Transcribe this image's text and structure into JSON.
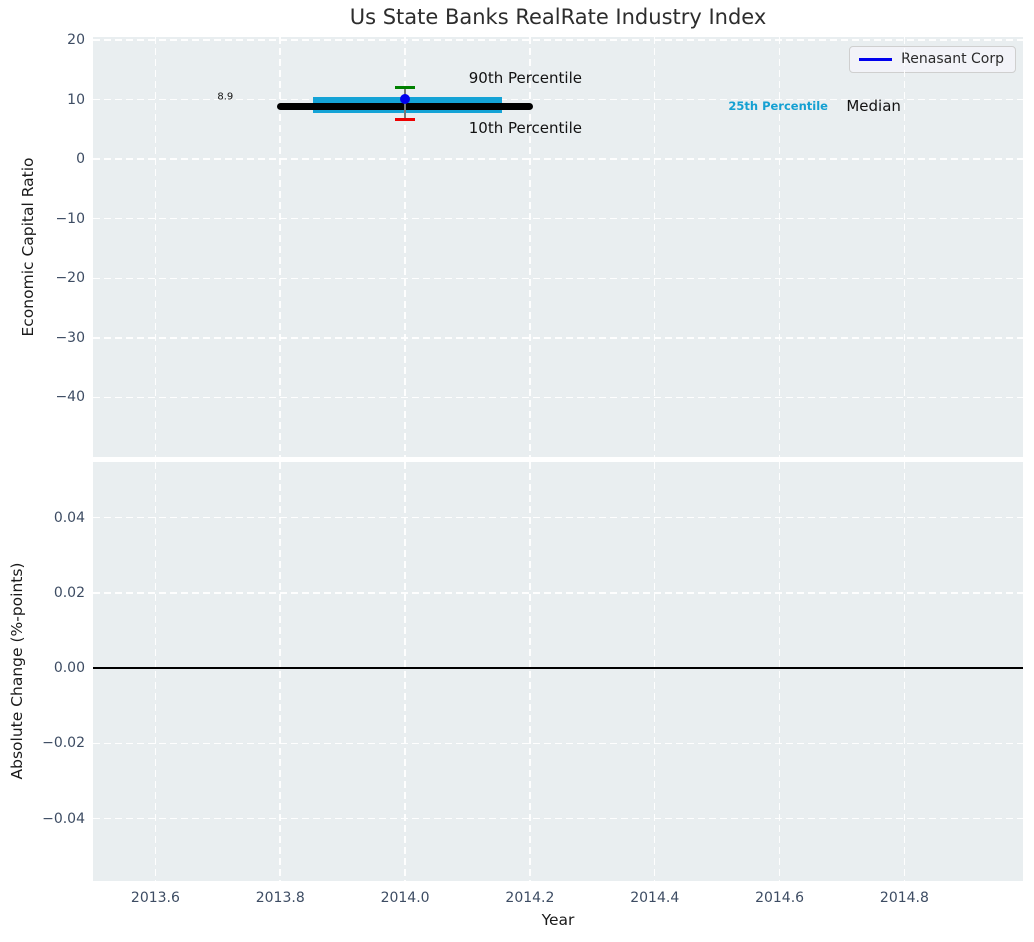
{
  "figure": {
    "title": "Us State Banks RealRate Industry Index",
    "xlabel": "Year",
    "background": "#ffffff",
    "axes_background": "#e9eef0",
    "grid_color": "#ffffff"
  },
  "legend": {
    "label": "Renasant Corp",
    "line_color": "#0000ee",
    "position": "upper right"
  },
  "chart_data": [
    {
      "id": "economic-capital-ratio-panel",
      "type": "line",
      "ylabel": "Economic Capital Ratio",
      "xlim": [
        2013.5,
        2014.99
      ],
      "ylim": [
        -50,
        20.5
      ],
      "xticks": [
        2013.6,
        2013.8,
        2014.0,
        2014.2,
        2014.4,
        2014.6,
        2014.8
      ],
      "xtick_labels": [
        "2013.6",
        "2013.8",
        "2014.0",
        "2014.2",
        "2014.4",
        "2014.6",
        "2014.8"
      ],
      "yticks": [
        20,
        10,
        0,
        -10,
        -20,
        -30,
        -40
      ],
      "ytick_labels": [
        "20",
        "10",
        "0",
        "−10",
        "−20",
        "−30",
        "−40"
      ],
      "show_xtick_labels": false,
      "grid": true,
      "series": [
        {
          "name": "25th-75th percentile band",
          "kind": "band",
          "color": "#14a3d6",
          "x_start": 2013.853,
          "x_end": 2014.155,
          "value_top": 10.45,
          "value_bottom": 7.75
        },
        {
          "name": "Median",
          "kind": "thick_hline",
          "color": "#000000",
          "x_start": 2013.795,
          "x_end": 2014.205,
          "value": 8.9
        },
        {
          "name": "Renasant Corp",
          "kind": "point_errorbar",
          "color": "#0000ee",
          "x": 2014.0,
          "value": 10.1,
          "whisker_high": 12.1,
          "whisker_high_color": "#008000",
          "whisker_low": 6.7,
          "whisker_low_color": "#ee0000",
          "line_color": "#777777"
        }
      ],
      "annotations": [
        {
          "text": "8.9",
          "x": 2013.712,
          "y": 10.4,
          "align": "center",
          "style": "small"
        },
        {
          "text": "90th Percentile",
          "x": 2014.102,
          "y": 13.6,
          "align": "left",
          "style": "large"
        },
        {
          "text": "10th Percentile",
          "x": 2014.102,
          "y": 5.2,
          "align": "left",
          "style": "large"
        },
        {
          "text": "25th Percentile",
          "x": 2014.518,
          "y": 8.9,
          "align": "left",
          "style": "cyan"
        },
        {
          "text": "Median",
          "x": 2014.707,
          "y": 8.9,
          "align": "left",
          "style": "large"
        }
      ]
    },
    {
      "id": "absolute-change-panel",
      "type": "line",
      "ylabel": "Absolute Change (%-points)",
      "xlim": [
        2013.5,
        2014.99
      ],
      "ylim": [
        -0.0566,
        0.0548
      ],
      "xticks": [
        2013.6,
        2013.8,
        2014.0,
        2014.2,
        2014.4,
        2014.6,
        2014.8
      ],
      "xtick_labels": [
        "2013.6",
        "2013.8",
        "2014.0",
        "2014.2",
        "2014.4",
        "2014.6",
        "2014.8"
      ],
      "yticks": [
        0.04,
        0.02,
        0.0,
        -0.02,
        -0.04
      ],
      "ytick_labels": [
        "0.04",
        "0.02",
        "0.00",
        "−0.02",
        "−0.04"
      ],
      "show_xtick_labels": true,
      "grid": true,
      "series": [
        {
          "name": "zero line",
          "kind": "hline",
          "color": "#000000",
          "value": 0.0
        }
      ],
      "annotations": []
    }
  ]
}
